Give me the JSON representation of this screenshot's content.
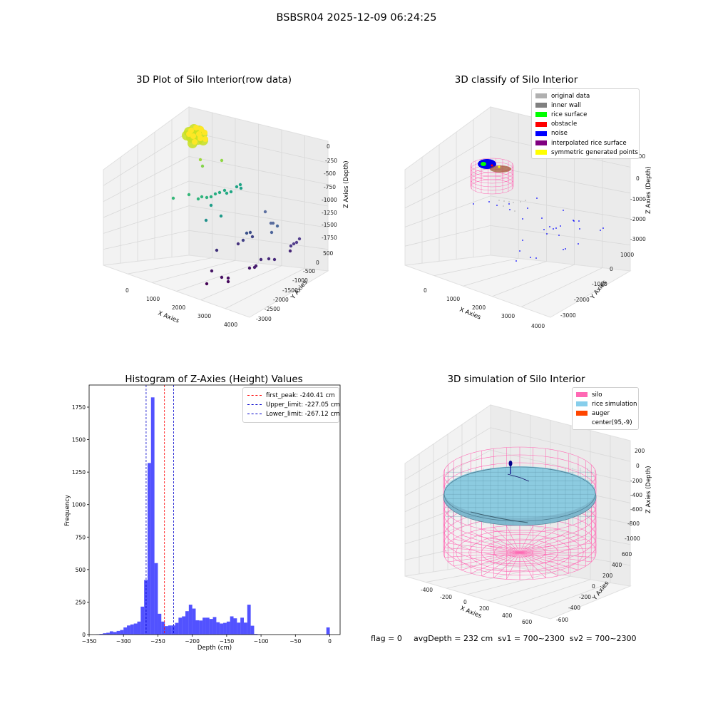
{
  "suptitle": "BSBSR04 2025-12-09 06:24:25",
  "chart_data": [
    {
      "type": "scatter",
      "title": "3D Plot of Silo Interior(row data)",
      "xlabel": "X Axies",
      "ylabel": "Y Axies",
      "zlabel": "Z Axies (Depth)",
      "x_ticks": [
        "0",
        "1000",
        "2000",
        "3000",
        "4000"
      ],
      "y_ticks": [
        "500",
        "0",
        "-500",
        "-1000",
        "-1500",
        "-2000",
        "-2500",
        "-3000"
      ],
      "z_ticks": [
        "0",
        "-250",
        "-500",
        "-750",
        "-1000",
        "-1250",
        "-1500",
        "-1750"
      ],
      "colormap": "viridis (color by depth)"
    },
    {
      "type": "scatter",
      "title": "3D classify of Silo Interior",
      "xlabel": "X Axies",
      "ylabel": "Y Axies",
      "zlabel": "Z Axies (Depth)",
      "x_ticks": [
        "0",
        "1000",
        "2000",
        "3000",
        "4000"
      ],
      "y_ticks": [
        "1000",
        "0",
        "-1000",
        "-2000",
        "-3000"
      ],
      "z_ticks": [
        "1000",
        "0",
        "-1000",
        "-2000",
        "-3000"
      ],
      "legend": [
        {
          "label": "original data",
          "color": "#b0b0b0"
        },
        {
          "label": "inner wall",
          "color": "#808080"
        },
        {
          "label": "rice surface",
          "color": "#00ff00"
        },
        {
          "label": "obstacle",
          "color": "#ff0000"
        },
        {
          "label": "noise",
          "color": "#0000ff"
        },
        {
          "label": "interpolated rice surface",
          "color": "#800080"
        },
        {
          "label": "symmetric generated points",
          "color": "#ffff00"
        }
      ]
    },
    {
      "type": "bar",
      "title": "Histogram of Z-Axies (Height) Values",
      "xlabel": "Depth (cm)",
      "ylabel": "Frequency",
      "xlim": [
        -350,
        15
      ],
      "ylim": [
        0,
        1920
      ],
      "x_ticks": [
        -350,
        -300,
        -250,
        -200,
        -150,
        -100,
        -50,
        0
      ],
      "y_ticks": [
        0,
        250,
        500,
        750,
        1000,
        1250,
        1500,
        1750
      ],
      "bin_width": 5,
      "color": "#0000ff",
      "bins": [
        [
          -340,
          2
        ],
        [
          -335,
          5
        ],
        [
          -330,
          10
        ],
        [
          -325,
          14
        ],
        [
          -320,
          25
        ],
        [
          -315,
          20
        ],
        [
          -310,
          28
        ],
        [
          -305,
          35
        ],
        [
          -300,
          55
        ],
        [
          -295,
          70
        ],
        [
          -290,
          78
        ],
        [
          -285,
          85
        ],
        [
          -280,
          100
        ],
        [
          -275,
          215
        ],
        [
          -270,
          420
        ],
        [
          -265,
          1320
        ],
        [
          -260,
          1825
        ],
        [
          -255,
          550
        ],
        [
          -250,
          160
        ],
        [
          -245,
          100
        ],
        [
          -240,
          65
        ],
        [
          -235,
          70
        ],
        [
          -230,
          70
        ],
        [
          -225,
          90
        ],
        [
          -220,
          130
        ],
        [
          -215,
          140
        ],
        [
          -210,
          180
        ],
        [
          -205,
          230
        ],
        [
          -200,
          200
        ],
        [
          -195,
          110
        ],
        [
          -190,
          108
        ],
        [
          -185,
          130
        ],
        [
          -180,
          130
        ],
        [
          -175,
          120
        ],
        [
          -170,
          135
        ],
        [
          -165,
          95
        ],
        [
          -160,
          85
        ],
        [
          -155,
          90
        ],
        [
          -150,
          100
        ],
        [
          -145,
          140
        ],
        [
          -140,
          125
        ],
        [
          -135,
          92
        ],
        [
          -130,
          130
        ],
        [
          -125,
          92
        ],
        [
          -120,
          230
        ],
        [
          -115,
          68
        ],
        [
          -110,
          5
        ],
        [
          -105,
          2
        ],
        [
          -100,
          0
        ],
        [
          -95,
          0
        ],
        [
          -90,
          0
        ],
        [
          -85,
          0
        ],
        [
          -80,
          0
        ],
        [
          -75,
          0
        ],
        [
          -70,
          0
        ],
        [
          -65,
          0
        ],
        [
          -60,
          0
        ],
        [
          -55,
          0
        ],
        [
          -50,
          0
        ],
        [
          -45,
          0
        ],
        [
          -40,
          0
        ],
        [
          -35,
          0
        ],
        [
          -30,
          0
        ],
        [
          -25,
          0
        ],
        [
          -20,
          0
        ],
        [
          -15,
          0
        ],
        [
          -10,
          0
        ],
        [
          -5,
          55
        ]
      ],
      "lines": [
        {
          "label": "first_peak: -240.41 cm",
          "value": -240.41,
          "color": "#ff0000"
        },
        {
          "label": "Upper_limit: -227.05 cm",
          "value": -227.05,
          "color": "#0000cc"
        },
        {
          "label": "Lower_limit: -267.12 cm",
          "value": -267.12,
          "color": "#0000cc"
        }
      ]
    },
    {
      "type": "surface",
      "title": "3D simulation of Silo Interior",
      "xlabel": "X Axies",
      "ylabel": "Y Axies",
      "zlabel": "Z Axies (Depth)",
      "x_ticks": [
        "-400",
        "-200",
        "0",
        "200",
        "400",
        "600"
      ],
      "y_ticks": [
        "600",
        "400",
        "200",
        "0",
        "-200",
        "-400",
        "-600"
      ],
      "z_ticks": [
        "200",
        "0",
        "-200",
        "-400",
        "-600",
        "-800",
        "-1000"
      ],
      "legend": [
        {
          "label": "silo",
          "color": "#ff69b4"
        },
        {
          "label": "rice simulation",
          "color": "#87ceeb"
        },
        {
          "label": "auger",
          "color": "#ff4500"
        },
        {
          "label": "center(95,-9)",
          "color": ""
        }
      ]
    }
  ],
  "footer": {
    "flag": "flag = 0",
    "avg": "avgDepth = 232 cm  sv1 = 700~2300  sv2 = 700~2300"
  }
}
